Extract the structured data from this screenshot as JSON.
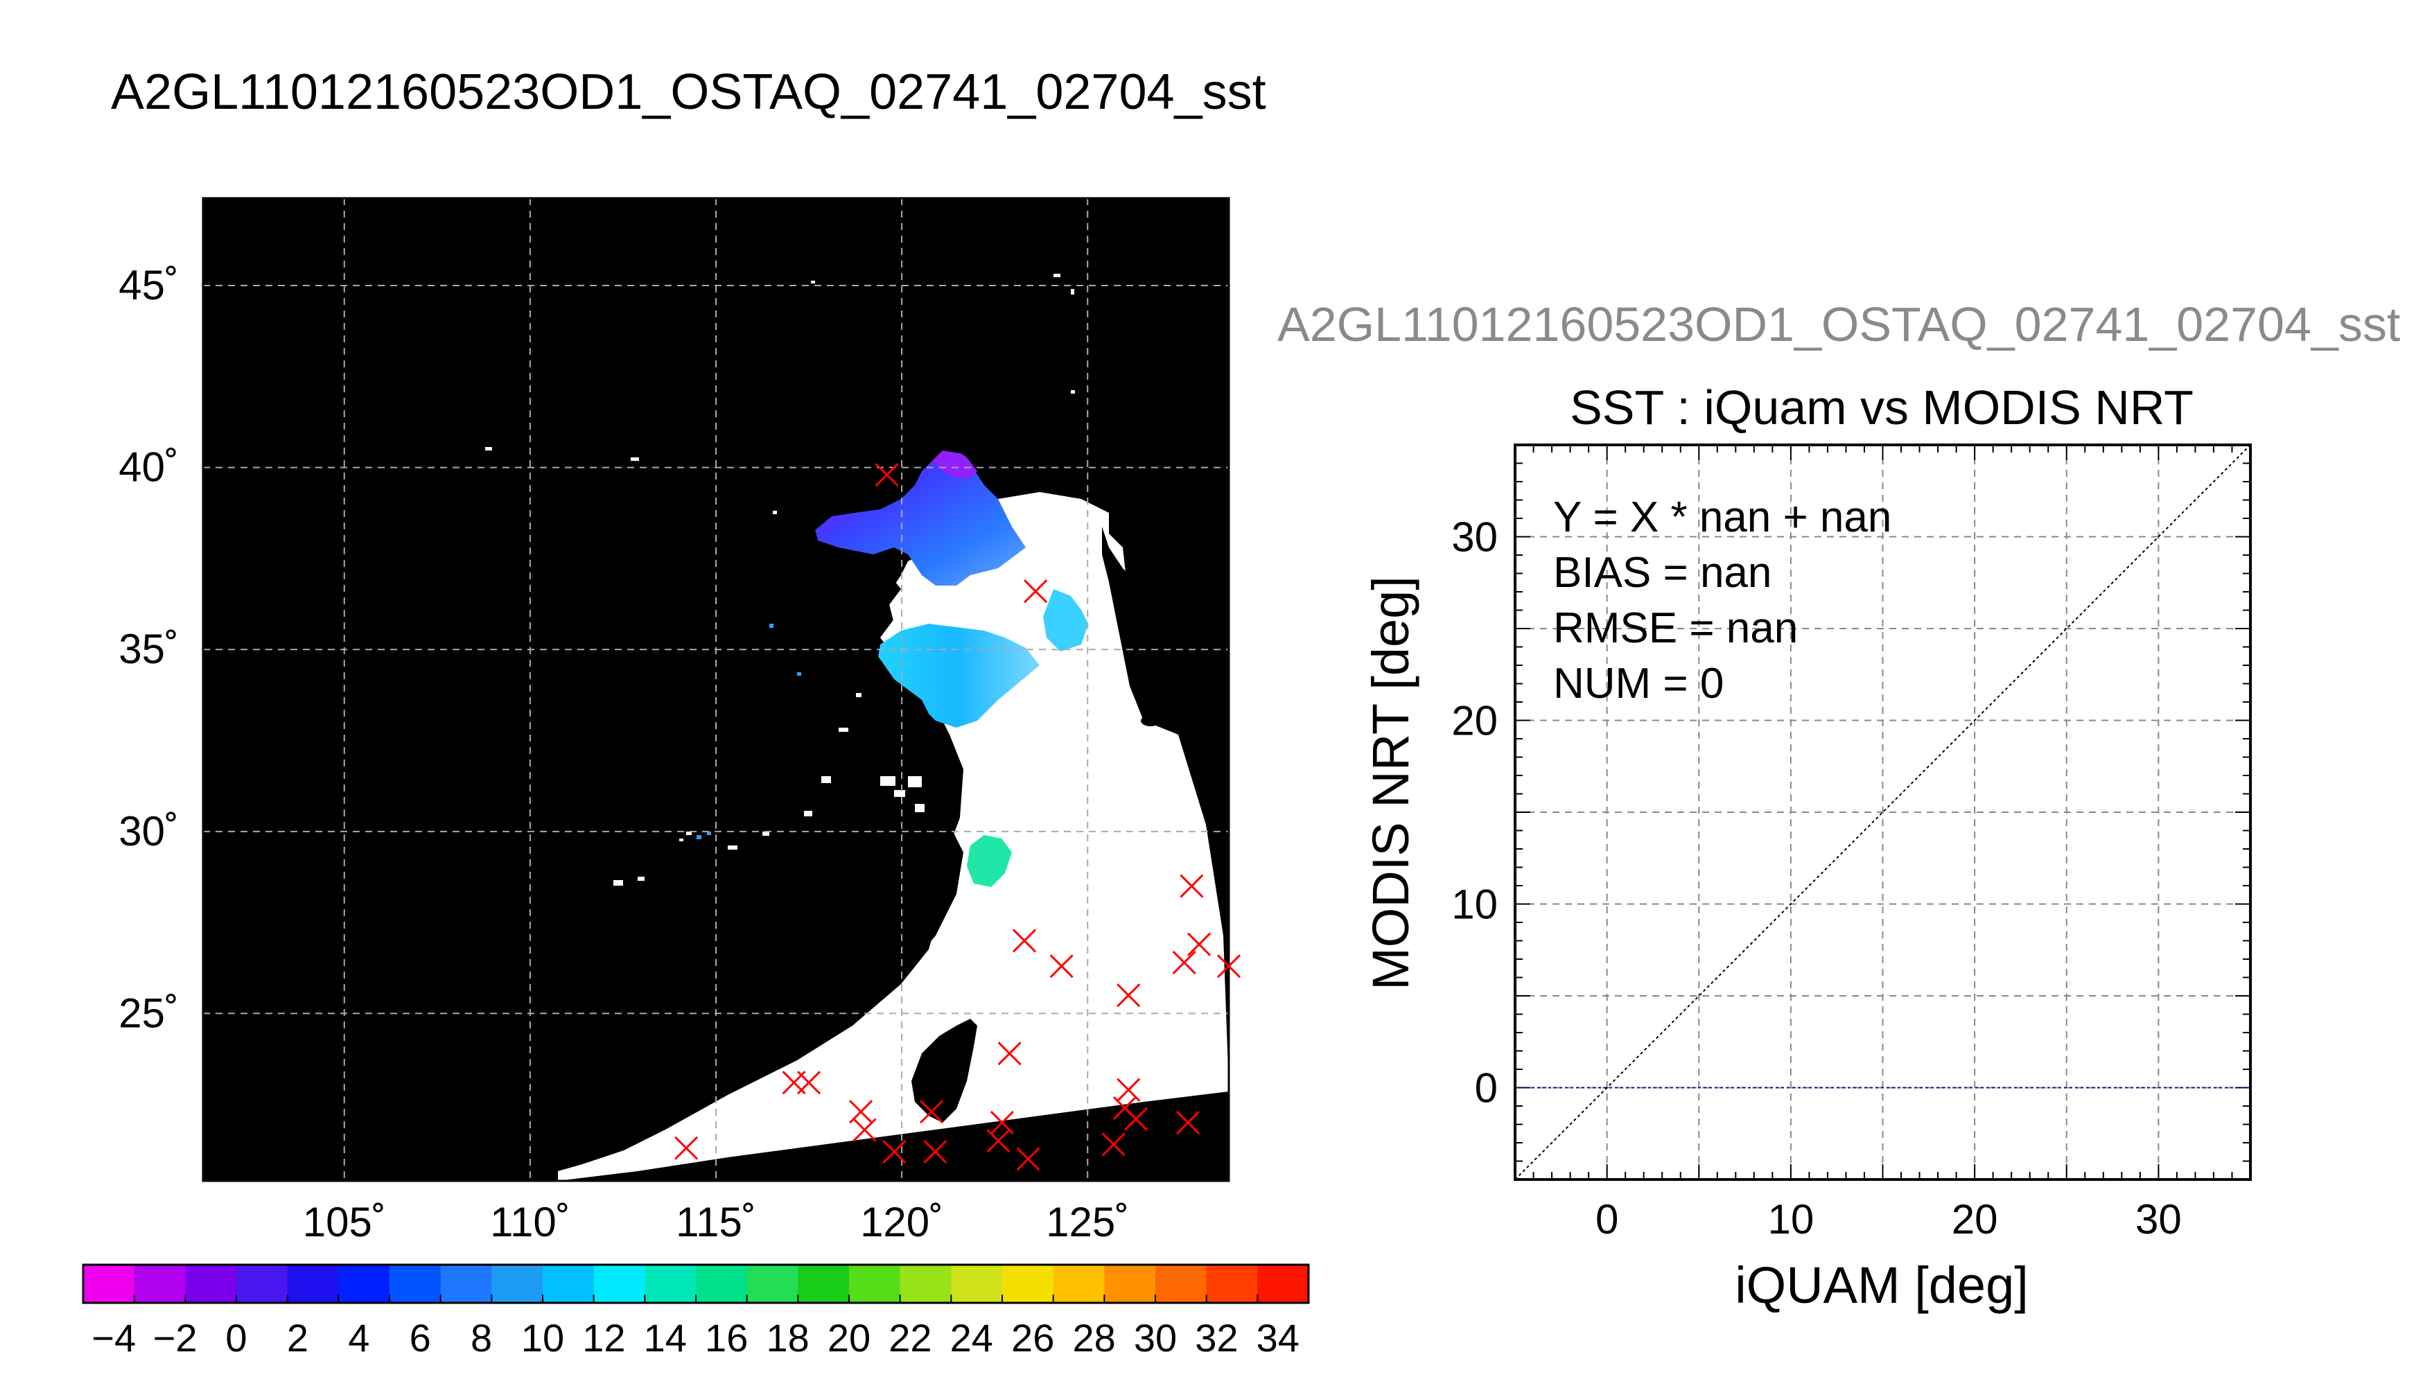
{
  "page_title": "A2GL11012160523OD1_OSTAQ_02741_02704_sst",
  "map": {
    "lon_ticks": [
      "105˚",
      "110˚",
      "115˚",
      "120˚",
      "125˚"
    ],
    "lat_ticks": [
      "45˚",
      "40˚",
      "35˚",
      "30˚",
      "25˚"
    ],
    "lon_range": [
      101.2,
      128.8
    ],
    "lat_range": [
      20.4,
      47.4
    ],
    "background_color": "#000000",
    "marker_color": "#ff0000",
    "markers": [
      [
        119.6,
        39.8
      ],
      [
        123.6,
        36.6
      ],
      [
        123.3,
        27.0
      ],
      [
        124.3,
        26.3
      ],
      [
        126.1,
        25.5
      ],
      [
        127.8,
        28.5
      ],
      [
        128.0,
        26.9
      ],
      [
        127.6,
        26.4
      ],
      [
        128.8,
        26.3
      ],
      [
        122.9,
        23.9
      ],
      [
        117.1,
        23.1
      ],
      [
        117.5,
        23.1
      ],
      [
        118.9,
        22.3
      ],
      [
        120.8,
        22.3
      ],
      [
        122.7,
        22.0
      ],
      [
        126.1,
        22.9
      ],
      [
        126.0,
        22.4
      ],
      [
        126.3,
        22.1
      ],
      [
        127.7,
        22.0
      ],
      [
        119.0,
        21.8
      ],
      [
        119.8,
        21.2
      ],
      [
        120.9,
        21.2
      ],
      [
        122.6,
        21.5
      ],
      [
        123.4,
        21.0
      ],
      [
        125.7,
        21.4
      ],
      [
        114.2,
        21.3
      ]
    ]
  },
  "colorbar": {
    "tick_labels": [
      "−4",
      "−2",
      "0",
      "2",
      "4",
      "6",
      "8",
      "10",
      "12",
      "14",
      "16",
      "18",
      "20",
      "22",
      "24",
      "26",
      "28",
      "30",
      "32",
      "34"
    ],
    "bin_colors": [
      "#ee00ee",
      "#b000ee",
      "#7a00ee",
      "#4a18ee",
      "#1e10ee",
      "#0020ff",
      "#0055ff",
      "#1d78ff",
      "#1e9bf5",
      "#00c0ff",
      "#00eaff",
      "#00e6bb",
      "#00e08a",
      "#22dd55",
      "#18cc18",
      "#55dd18",
      "#99e218",
      "#d0e218",
      "#f4e000",
      "#ffc000",
      "#ff9000",
      "#ff6800",
      "#ff3e00",
      "#ff1400"
    ]
  },
  "scatter": {
    "gray_title": "A2GL11012160523OD1_OSTAQ_02741_02704_sst",
    "title": "SST : iQuam vs MODIS NRT",
    "stats": [
      "Y = X * nan + nan",
      "BIAS = nan",
      "RMSE = nan",
      "NUM = 0"
    ],
    "x_ticks": [
      "0",
      "10",
      "20",
      "30"
    ],
    "y_ticks": [
      "0",
      "10",
      "20",
      "30"
    ]
  },
  "chart_data": [
    {
      "type": "heatmap",
      "title": "A2GL11012160523OD1_OSTAQ_02741_02704_sst",
      "xlabel": "",
      "ylabel": "",
      "xlim": [
        101.2,
        128.8
      ],
      "ylim": [
        20.4,
        47.4
      ],
      "x_ticks": [
        105,
        110,
        115,
        120,
        125
      ],
      "y_ticks": [
        25,
        30,
        35,
        40,
        45
      ],
      "grid": true,
      "colorbar_range": [
        -5,
        35
      ],
      "colorbar_ticks": [
        -4,
        -2,
        0,
        2,
        4,
        6,
        8,
        10,
        12,
        14,
        16,
        18,
        20,
        22,
        24,
        26,
        28,
        30,
        32,
        34
      ]
    },
    {
      "type": "scatter",
      "title": "SST : iQuam vs MODIS NRT",
      "xlabel": "iQUAM [deg]",
      "ylabel": "MODIS NRT [deg]",
      "xlim": [
        -5,
        35
      ],
      "ylim": [
        -5,
        35
      ],
      "x_ticks": [
        0,
        10,
        20,
        30
      ],
      "y_ticks": [
        0,
        10,
        20,
        30
      ],
      "grid": true,
      "series": [],
      "reference_lines": [
        {
          "kind": "one_to_one",
          "color": "#000000"
        },
        {
          "kind": "horizontal",
          "y": 0,
          "color": "#0000aa"
        }
      ],
      "annotations": [
        "Y = X * nan + nan",
        "BIAS = nan",
        "RMSE = nan",
        "NUM = 0"
      ]
    }
  ]
}
